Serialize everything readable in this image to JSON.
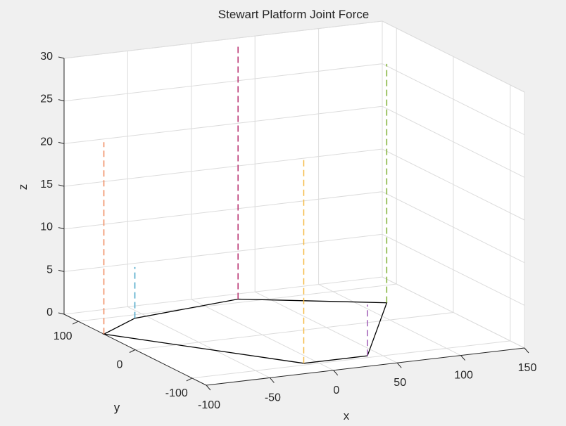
{
  "chart_data": {
    "type": "line3d",
    "title": "Stewart Platform Joint Force",
    "xlabel": "x",
    "ylabel": "y",
    "zlabel": "z",
    "xlim": [
      -100,
      150
    ],
    "ylim": [
      -125,
      125
    ],
    "zlim": [
      0,
      30
    ],
    "xticks": [
      -100,
      -50,
      0,
      50,
      100,
      150
    ],
    "yticks": [
      -100,
      0,
      100
    ],
    "zticks": [
      0,
      5,
      10,
      15,
      20,
      25,
      30
    ],
    "grid": true,
    "colors": {
      "background": "#f0f0f0",
      "axes": "#ffffff",
      "grid": "#dcdcdc",
      "axis_line": "#262626",
      "base": "#000000"
    },
    "base_polygon": [
      [
        -60,
        90
      ],
      [
        -100,
        55
      ],
      [
        -10,
        -95
      ],
      [
        40,
        -95
      ],
      [
        120,
        50
      ],
      [
        30,
        110
      ]
    ],
    "forces": [
      {
        "x": -60,
        "y": 90,
        "z": 6,
        "color": "#4aa6c9"
      },
      {
        "x": -100,
        "y": 55,
        "z": 22.5,
        "color": "#f08a5d"
      },
      {
        "x": -10,
        "y": -95,
        "z": 24,
        "color": "#f5b942"
      },
      {
        "x": 40,
        "y": -95,
        "z": 6,
        "color": "#a05cb5"
      },
      {
        "x": 120,
        "y": 50,
        "z": 28,
        "color": "#7fb034"
      },
      {
        "x": 30,
        "y": 110,
        "z": 30,
        "color": "#b8306f"
      }
    ]
  }
}
